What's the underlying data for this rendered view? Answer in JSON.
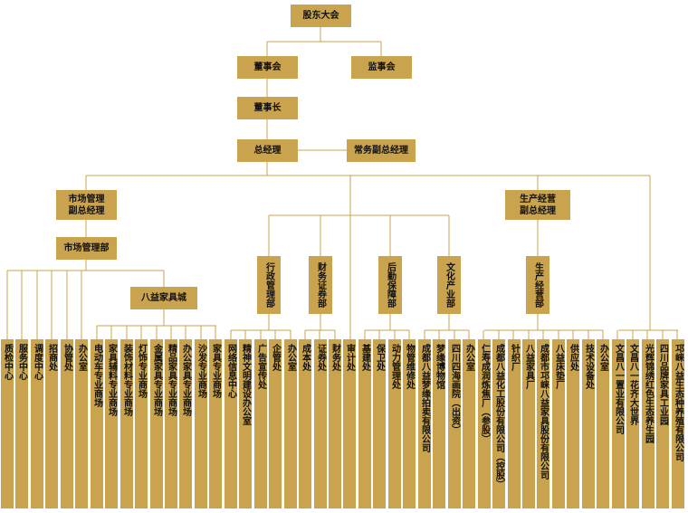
{
  "chart": {
    "colors": {
      "box": "#c9a34e",
      "line": "#c9a34e"
    },
    "top": {
      "shareholders": "股东大会",
      "board": "董事会",
      "supervisors": "监事会",
      "chairman": "董事长",
      "gm": "总经理",
      "exec_vgm": "常务副总经理",
      "market_vgm": "市场管理\n副总经理",
      "prod_vgm": "生产经营\n副总经理",
      "market_dept": "市场管理部",
      "bayi_mall": "八益家具城"
    },
    "mid_depts": [
      "行政管理部",
      "财务证券部",
      "后勤保障部",
      "文化产业部",
      "生产经营部"
    ],
    "leaves": [
      "质检中心",
      "服务中心",
      "调度中心",
      "招商处",
      "协管处",
      "办公室",
      "电动车专业商场",
      "家具辅料专业商场",
      "装饰材料专业商场",
      "灯饰专业商场",
      "金属家具专业商场",
      "精品家具专业商场",
      "办公家具专业商场",
      "沙发专业商场",
      "家具专业商场",
      "网络信息中心",
      "精神文明建设办公室",
      "广告宣传处",
      "企管处",
      "办公室",
      "成本处",
      "证券处",
      "财务处",
      "审计处",
      "基建处",
      "保卫处",
      "动力管理处",
      "物管维修处",
      "成都八益梦缘拍卖有限公司",
      "梦缘博物馆",
      "四川四海画院（出资）",
      "办公室",
      "仁寿成润炼焦厂（参股）",
      "成都八益化工股份有限公司（控股）",
      "针织厂",
      "八益家具厂",
      "成都市邛崃八益家具股份有限公司",
      "八益床垫厂",
      "供应处",
      "技术设备处",
      "办公室",
      "文昌八一置业有限公司",
      "文昌八一花齐大世界",
      "光辉锦绣红色生态养生园",
      "四川品牌家具工业园",
      "邛崃八益生态种养殖有限公司"
    ]
  }
}
